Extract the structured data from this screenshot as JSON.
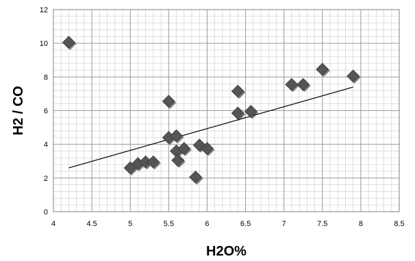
{
  "chart_data": {
    "type": "scatter",
    "title": "",
    "xlabel": "H2O%",
    "ylabel": "H2 / CO",
    "xlim": [
      4,
      8.5
    ],
    "ylim": [
      0,
      12
    ],
    "x_major_step": 0.5,
    "y_major_step": 2,
    "x_minor_step": 0.1,
    "y_minor_step": 0.4,
    "x_tick_labels": [
      "4",
      "4.5",
      "5",
      "5.5",
      "6",
      "6.5",
      "7",
      "7.5",
      "8",
      "8.5"
    ],
    "y_tick_labels": [
      "0",
      "2",
      "4",
      "6",
      "8",
      "10",
      "12"
    ],
    "grid": "on",
    "marker": "diamond",
    "marker_color": "#555555",
    "series": [
      {
        "points": [
          {
            "x": 4.2,
            "y": 10.05
          },
          {
            "x": 5.0,
            "y": 2.6
          },
          {
            "x": 5.1,
            "y": 2.85
          },
          {
            "x": 5.2,
            "y": 2.95
          },
          {
            "x": 5.3,
            "y": 2.95
          },
          {
            "x": 5.5,
            "y": 6.55
          },
          {
            "x": 5.5,
            "y": 4.4
          },
          {
            "x": 5.6,
            "y": 4.5
          },
          {
            "x": 5.6,
            "y": 3.6
          },
          {
            "x": 5.62,
            "y": 3.05
          },
          {
            "x": 5.7,
            "y": 3.75
          },
          {
            "x": 5.85,
            "y": 2.05
          },
          {
            "x": 5.9,
            "y": 3.95
          },
          {
            "x": 6.0,
            "y": 3.75
          },
          {
            "x": 6.4,
            "y": 7.15
          },
          {
            "x": 6.4,
            "y": 5.85
          },
          {
            "x": 6.57,
            "y": 5.95
          },
          {
            "x": 7.1,
            "y": 7.55
          },
          {
            "x": 7.25,
            "y": 7.55
          },
          {
            "x": 7.5,
            "y": 8.45
          },
          {
            "x": 7.9,
            "y": 8.05
          }
        ]
      }
    ],
    "trendline": {
      "type": "linear",
      "x_start": 4.2,
      "y_start": 2.6,
      "x_end": 7.9,
      "y_end": 7.4
    }
  }
}
